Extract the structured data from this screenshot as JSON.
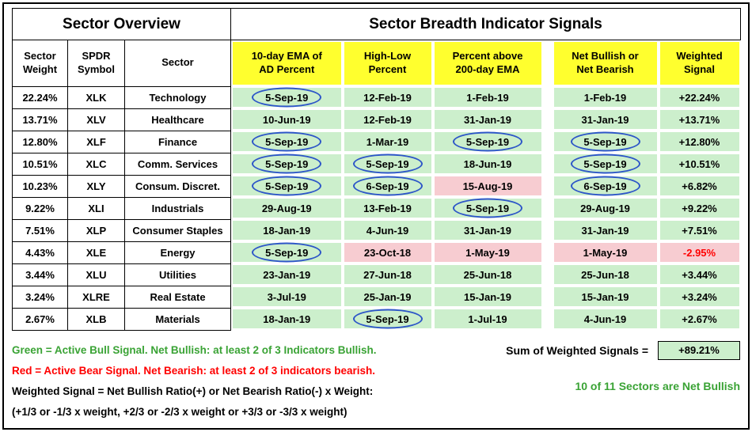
{
  "chart_data": {
    "type": "table",
    "titles": {
      "left": "Sector Overview",
      "right": "Sector Breadth Indicator Signals"
    },
    "columns": [
      "Sector\nWeight",
      "SPDR\nSymbol",
      "Sector",
      "10-day EMA of\nAD Percent",
      "High-Low\nPercent",
      "Percent above\n200-day EMA",
      "Net Bullish or\nNet Bearish",
      "Weighted\nSignal"
    ],
    "rows": [
      {
        "weight": "22.24%",
        "symbol": "XLK",
        "sector": "Technology",
        "signals": [
          {
            "date": "5-Sep-19",
            "state": "bull",
            "circled": true
          },
          {
            "date": "12-Feb-19",
            "state": "bull",
            "circled": false
          },
          {
            "date": "1-Feb-19",
            "state": "bull",
            "circled": false
          },
          {
            "date": "1-Feb-19",
            "state": "bull",
            "circled": false
          }
        ],
        "weighted": {
          "value": "+22.24%",
          "state": "bull"
        }
      },
      {
        "weight": "13.71%",
        "symbol": "XLV",
        "sector": "Healthcare",
        "signals": [
          {
            "date": "10-Jun-19",
            "state": "bull",
            "circled": false
          },
          {
            "date": "12-Feb-19",
            "state": "bull",
            "circled": false
          },
          {
            "date": "31-Jan-19",
            "state": "bull",
            "circled": false
          },
          {
            "date": "31-Jan-19",
            "state": "bull",
            "circled": false
          }
        ],
        "weighted": {
          "value": "+13.71%",
          "state": "bull"
        }
      },
      {
        "weight": "12.80%",
        "symbol": "XLF",
        "sector": "Finance",
        "signals": [
          {
            "date": "5-Sep-19",
            "state": "bull",
            "circled": true
          },
          {
            "date": "1-Mar-19",
            "state": "bull",
            "circled": false
          },
          {
            "date": "5-Sep-19",
            "state": "bull",
            "circled": true
          },
          {
            "date": "5-Sep-19",
            "state": "bull",
            "circled": true
          }
        ],
        "weighted": {
          "value": "+12.80%",
          "state": "bull"
        }
      },
      {
        "weight": "10.51%",
        "symbol": "XLC",
        "sector": "Comm. Services",
        "signals": [
          {
            "date": "5-Sep-19",
            "state": "bull",
            "circled": true
          },
          {
            "date": "5-Sep-19",
            "state": "bull",
            "circled": true
          },
          {
            "date": "18-Jun-19",
            "state": "bull",
            "circled": false
          },
          {
            "date": "5-Sep-19",
            "state": "bull",
            "circled": true
          }
        ],
        "weighted": {
          "value": "+10.51%",
          "state": "bull"
        }
      },
      {
        "weight": "10.23%",
        "symbol": "XLY",
        "sector": "Consum. Discret.",
        "signals": [
          {
            "date": "5-Sep-19",
            "state": "bull",
            "circled": true
          },
          {
            "date": "6-Sep-19",
            "state": "bull",
            "circled": true
          },
          {
            "date": "15-Aug-19",
            "state": "bear",
            "circled": false
          },
          {
            "date": "6-Sep-19",
            "state": "bull",
            "circled": true
          }
        ],
        "weighted": {
          "value": "+6.82%",
          "state": "bull"
        }
      },
      {
        "weight": "9.22%",
        "symbol": "XLI",
        "sector": "Industrials",
        "signals": [
          {
            "date": "29-Aug-19",
            "state": "bull",
            "circled": false
          },
          {
            "date": "13-Feb-19",
            "state": "bull",
            "circled": false
          },
          {
            "date": "5-Sep-19",
            "state": "bull",
            "circled": true
          },
          {
            "date": "29-Aug-19",
            "state": "bull",
            "circled": false
          }
        ],
        "weighted": {
          "value": "+9.22%",
          "state": "bull"
        }
      },
      {
        "weight": "7.51%",
        "symbol": "XLP",
        "sector": "Consumer Staples",
        "signals": [
          {
            "date": "18-Jan-19",
            "state": "bull",
            "circled": false
          },
          {
            "date": "4-Jun-19",
            "state": "bull",
            "circled": false
          },
          {
            "date": "31-Jan-19",
            "state": "bull",
            "circled": false
          },
          {
            "date": "31-Jan-19",
            "state": "bull",
            "circled": false
          }
        ],
        "weighted": {
          "value": "+7.51%",
          "state": "bull"
        }
      },
      {
        "weight": "4.43%",
        "symbol": "XLE",
        "sector": "Energy",
        "signals": [
          {
            "date": "5-Sep-19",
            "state": "bull",
            "circled": true
          },
          {
            "date": "23-Oct-18",
            "state": "bear",
            "circled": false
          },
          {
            "date": "1-May-19",
            "state": "bear",
            "circled": false
          },
          {
            "date": "1-May-19",
            "state": "bear",
            "circled": false
          }
        ],
        "weighted": {
          "value": "-2.95%",
          "state": "bear"
        }
      },
      {
        "weight": "3.44%",
        "symbol": "XLU",
        "sector": "Utilities",
        "signals": [
          {
            "date": "23-Jan-19",
            "state": "bull",
            "circled": false
          },
          {
            "date": "27-Jun-18",
            "state": "bull",
            "circled": false
          },
          {
            "date": "25-Jun-18",
            "state": "bull",
            "circled": false
          },
          {
            "date": "25-Jun-18",
            "state": "bull",
            "circled": false
          }
        ],
        "weighted": {
          "value": "+3.44%",
          "state": "bull"
        }
      },
      {
        "weight": "3.24%",
        "symbol": "XLRE",
        "sector": "Real Estate",
        "signals": [
          {
            "date": "3-Jul-19",
            "state": "bull",
            "circled": false
          },
          {
            "date": "25-Jan-19",
            "state": "bull",
            "circled": false
          },
          {
            "date": "15-Jan-19",
            "state": "bull",
            "circled": false
          },
          {
            "date": "15-Jan-19",
            "state": "bull",
            "circled": false
          }
        ],
        "weighted": {
          "value": "+3.24%",
          "state": "bull"
        }
      },
      {
        "weight": "2.67%",
        "symbol": "XLB",
        "sector": "Materials",
        "signals": [
          {
            "date": "18-Jan-19",
            "state": "bull",
            "circled": false
          },
          {
            "date": "5-Sep-19",
            "state": "bull",
            "circled": true
          },
          {
            "date": "1-Jul-19",
            "state": "bull",
            "circled": false
          },
          {
            "date": "4-Jun-19",
            "state": "bull",
            "circled": false
          }
        ],
        "weighted": {
          "value": "+2.67%",
          "state": "bull"
        }
      }
    ],
    "notes": [
      {
        "text": "Green = Active Bull Signal. Net Bullish: at least 2 of 3 Indicators Bullish.",
        "color": "green"
      },
      {
        "text": "Red = Active Bear Signal. Net Bearish: at least 2 of 3 indicators bearish.",
        "color": "red"
      },
      {
        "text": "Weighted Signal = Net Bullish Ratio(+) or Net Bearish Ratio(-) x Weight:",
        "color": "black"
      },
      {
        "text": "(+1/3 or -1/3 x weight, +2/3 or -2/3 x weight or +3/3 or -3/3 x weight)",
        "color": "black"
      }
    ],
    "summary": {
      "sum_label": "Sum of Weighted Signals =",
      "sum_value": "+89.21%",
      "net_bullish": "10 of 11 Sectors are Net Bullish"
    }
  },
  "colors": {
    "bull_cell": "#ccefcc",
    "bear_cell": "#f7ccd1",
    "header_yellow": "#ffff2e",
    "note_green": "#3aa335",
    "note_red": "#ff0000",
    "circle_blue": "#2d56c8"
  }
}
